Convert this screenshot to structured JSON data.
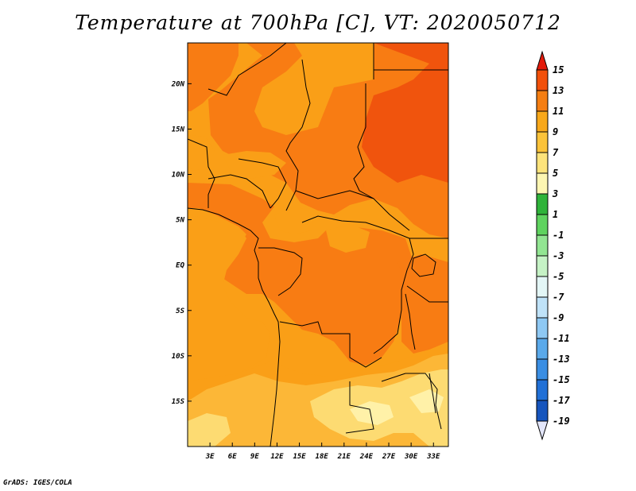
{
  "title": "Temperature at 700hPa [C], VT: 2020050712",
  "credit": "GrADS: IGES/COLA",
  "map": {
    "region": "Central Africa",
    "variable": "Temperature at 700hPa",
    "units": "C",
    "lon_range": [
      0,
      35
    ],
    "lat_range": [
      -20,
      24.5
    ],
    "lon_ticks": [
      {
        "value": 3,
        "label": "3E"
      },
      {
        "value": 6,
        "label": "6E"
      },
      {
        "value": 9,
        "label": "9E"
      },
      {
        "value": 12,
        "label": "12E"
      },
      {
        "value": 15,
        "label": "15E"
      },
      {
        "value": 18,
        "label": "18E"
      },
      {
        "value": 21,
        "label": "21E"
      },
      {
        "value": 24,
        "label": "24E"
      },
      {
        "value": 27,
        "label": "27E"
      },
      {
        "value": 30,
        "label": "30E"
      },
      {
        "value": 33,
        "label": "33E"
      }
    ],
    "lat_ticks": [
      {
        "value": 20,
        "label": "20N"
      },
      {
        "value": 15,
        "label": "15N"
      },
      {
        "value": 10,
        "label": "10N"
      },
      {
        "value": 5,
        "label": "5N"
      },
      {
        "value": 0,
        "label": "EQ"
      },
      {
        "value": -5,
        "label": "5S"
      },
      {
        "value": -10,
        "label": "10S"
      },
      {
        "value": -15,
        "label": "15S"
      }
    ]
  },
  "colorbar": {
    "labels": [
      "15",
      "13",
      "11",
      "9",
      "7",
      "5",
      "3",
      "1",
      "-1",
      "-3",
      "-5",
      "-7",
      "-9",
      "-11",
      "-13",
      "-15",
      "-17",
      "-19"
    ],
    "colors": [
      "#e31a0b",
      "#f2500a",
      "#f57e12",
      "#f8a81a",
      "#fbc33a",
      "#fde37b",
      "#fdf6b2",
      "#2fb33a",
      "#5fd35f",
      "#92e592",
      "#c5f2c5",
      "#e3f6f6",
      "#bfe2f8",
      "#8ec8f3",
      "#5aa9ea",
      "#3a8ee3",
      "#2170d6",
      "#1655bd",
      "#0b3aa0",
      "#04147a"
    ],
    "top_color": "#e31a0b",
    "bottom_color": "#e3e6fa"
  },
  "fields": {
    "colors": {
      "c13": "#f0540d",
      "c11": "#f87c13",
      "c9": "#fa9f17",
      "c7": "#fcb737",
      "c5": "#fddb72",
      "c3": "#fff1a8"
    }
  }
}
